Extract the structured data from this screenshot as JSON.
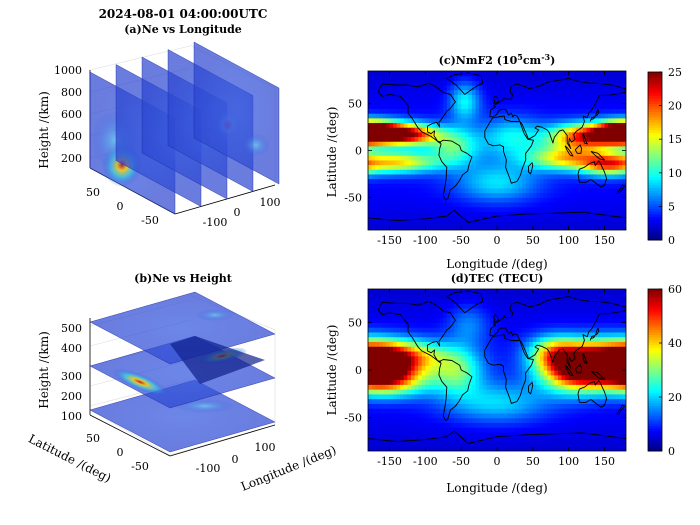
{
  "figure": {
    "timestamp": "2024-08-01 04:00:00UTC"
  },
  "chart_data": [
    {
      "id": "a",
      "type": "slices3d",
      "title": "(a)Ne vs Longitude",
      "zlabel": "Height /(km)",
      "zticks": [
        "200",
        "400",
        "600",
        "800",
        "1000"
      ],
      "yticks": [
        "50",
        "0",
        "-50"
      ],
      "xticks": [
        "-100",
        "0",
        "100"
      ],
      "slice_longitudes": [
        -150,
        -90,
        -30,
        30,
        90
      ]
    },
    {
      "id": "b",
      "type": "slices3d",
      "title": "(b)Ne vs Height",
      "zlabel": "Height /(km)",
      "xlabel": "Longitude /(deg)",
      "ylabel": "Latitude /(deg)",
      "zticks": [
        "100",
        "200",
        "300",
        "400",
        "500"
      ],
      "yticks": [
        "50",
        "0",
        "-50"
      ],
      "xticks": [
        "-100",
        "0",
        "100"
      ],
      "slice_heights_km": [
        150,
        300,
        450
      ]
    },
    {
      "id": "c",
      "type": "heatmap",
      "title_main": "(c)NmF2 (10",
      "title_sup1": "5",
      "title_mid": "cm",
      "title_sup2": "-3",
      "title_end": ")",
      "ylabel": "Latitude /(deg)",
      "xlim": [
        -180,
        180
      ],
      "ylim": [
        -85,
        85
      ],
      "xticks": [
        "-150",
        "-100",
        "-50",
        "0",
        "50",
        "100",
        "150"
      ],
      "yticks": [
        "50",
        "0",
        "-50"
      ],
      "colorbar_ticks": [
        "0",
        "5",
        "10",
        "15",
        "20",
        "25"
      ],
      "clim": [
        0,
        25
      ],
      "colormap": "jet",
      "blobs": [
        {
          "lon": -165,
          "lat": 20,
          "v": 21,
          "sx": 35,
          "sy": 8
        },
        {
          "lon": -120,
          "lat": 17,
          "v": 14,
          "sx": 30,
          "sy": 8
        },
        {
          "lon": -140,
          "lat": -12,
          "v": 13,
          "sx": 40,
          "sy": 8
        },
        {
          "lon": 175,
          "lat": 20,
          "v": 20,
          "sx": 25,
          "sy": 8
        },
        {
          "lon": 120,
          "lat": 15,
          "v": 17,
          "sx": 35,
          "sy": 10
        },
        {
          "lon": 100,
          "lat": -8,
          "v": 13,
          "sx": 40,
          "sy": 9
        },
        {
          "lon": 155,
          "lat": -15,
          "v": 12,
          "sx": 25,
          "sy": 8
        },
        {
          "lon": -60,
          "lat": 5,
          "v": 8,
          "sx": 25,
          "sy": 14
        },
        {
          "lon": -45,
          "lat": 55,
          "v": 8,
          "sx": 15,
          "sy": 15
        },
        {
          "lon": 20,
          "lat": 15,
          "v": 6,
          "sx": 30,
          "sy": 15
        },
        {
          "lon": 0,
          "lat": -35,
          "v": 6,
          "sx": 40,
          "sy": 15
        }
      ],
      "base": 3.5
    },
    {
      "id": "d",
      "type": "heatmap",
      "title": "(d)TEC (TECU)",
      "xlabel": "Longitude /(deg)",
      "ylabel": "Latitude /(deg)",
      "xlim": [
        -180,
        180
      ],
      "ylim": [
        -85,
        85
      ],
      "xticks": [
        "-150",
        "-100",
        "-50",
        "0",
        "50",
        "100",
        "150"
      ],
      "yticks": [
        "50",
        "0",
        "-50"
      ],
      "colorbar_ticks": [
        "0",
        "20",
        "40",
        "60"
      ],
      "clim": [
        0,
        60
      ],
      "colormap": "jet",
      "blobs": [
        {
          "lon": -165,
          "lat": 8,
          "v": 48,
          "sx": 28,
          "sy": 14
        },
        {
          "lon": -150,
          "lat": -10,
          "v": 32,
          "sx": 40,
          "sy": 12
        },
        {
          "lon": -120,
          "lat": 15,
          "v": 30,
          "sx": 35,
          "sy": 12
        },
        {
          "lon": 150,
          "lat": 10,
          "v": 50,
          "sx": 40,
          "sy": 15
        },
        {
          "lon": 110,
          "lat": 0,
          "v": 42,
          "sx": 35,
          "sy": 16
        },
        {
          "lon": 80,
          "lat": 20,
          "v": 25,
          "sx": 25,
          "sy": 12
        },
        {
          "lon": -55,
          "lat": 0,
          "v": 20,
          "sx": 25,
          "sy": 18
        },
        {
          "lon": 0,
          "lat": -35,
          "v": 14,
          "sx": 50,
          "sy": 15
        },
        {
          "lon": -40,
          "lat": 50,
          "v": 10,
          "sx": 20,
          "sy": 15
        }
      ],
      "base": 8
    }
  ]
}
